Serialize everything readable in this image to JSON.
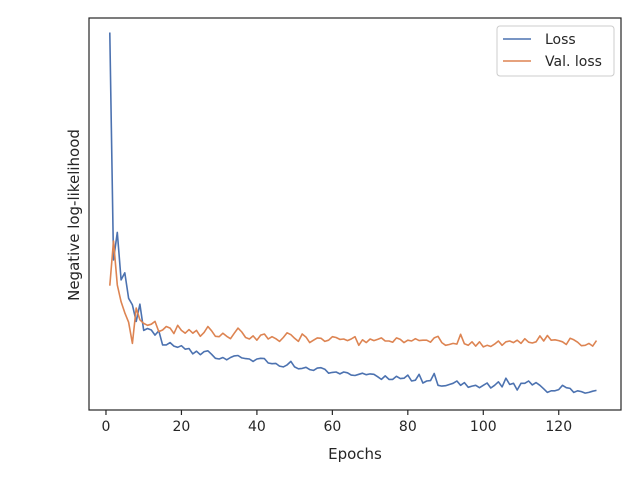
{
  "chart_data": {
    "type": "line",
    "title": "",
    "xlabel": "Epochs",
    "ylabel": "Negative log-likelihood",
    "xlim": [
      -4.5,
      136.5
    ],
    "ylim": [
      0,
      1
    ],
    "y_tick_labels_shown": false,
    "xticks": [
      0,
      20,
      40,
      60,
      80,
      100,
      120
    ],
    "legend_position": "top-right",
    "grid": false,
    "series": [
      {
        "name": "Loss",
        "color": "#4c72b0",
        "x": [
          1,
          2,
          3,
          4,
          5,
          6,
          7,
          8,
          9,
          10,
          11,
          12,
          13,
          14,
          15,
          16,
          17,
          18,
          19,
          20,
          21,
          22,
          23,
          24,
          25,
          26,
          27,
          28,
          29,
          30,
          31,
          32,
          33,
          34,
          35,
          36,
          37,
          38,
          39,
          40,
          41,
          42,
          43,
          44,
          45,
          46,
          47,
          48,
          49,
          50,
          51,
          52,
          53,
          54,
          55,
          56,
          57,
          58,
          59,
          60,
          61,
          62,
          63,
          64,
          65,
          66,
          67,
          68,
          69,
          70,
          71,
          72,
          73,
          74,
          75,
          76,
          77,
          78,
          79,
          80,
          81,
          82,
          83,
          84,
          85,
          86,
          87,
          88,
          89,
          90,
          91,
          92,
          93,
          94,
          95,
          96,
          97,
          98,
          99,
          100,
          101,
          102,
          103,
          104,
          105,
          106,
          107,
          108,
          109,
          110,
          111,
          112,
          113,
          114,
          115,
          116,
          117,
          118,
          119,
          120,
          121,
          122,
          123,
          124,
          125,
          126,
          127,
          128,
          129,
          130
        ],
        "y": [
          0.963,
          0.383,
          0.453,
          0.332,
          0.35,
          0.285,
          0.268,
          0.226,
          0.27,
          0.203,
          0.208,
          0.204,
          0.191,
          0.202,
          0.166,
          0.166,
          0.172,
          0.163,
          0.16,
          0.164,
          0.155,
          0.157,
          0.143,
          0.15,
          0.141,
          0.149,
          0.151,
          0.142,
          0.132,
          0.13,
          0.134,
          0.128,
          0.134,
          0.138,
          0.139,
          0.133,
          0.131,
          0.13,
          0.124,
          0.13,
          0.132,
          0.131,
          0.12,
          0.118,
          0.119,
          0.112,
          0.11,
          0.115,
          0.124,
          0.11,
          0.105,
          0.106,
          0.109,
          0.103,
          0.101,
          0.107,
          0.108,
          0.104,
          0.094,
          0.096,
          0.097,
          0.092,
          0.097,
          0.095,
          0.089,
          0.088,
          0.091,
          0.094,
          0.09,
          0.092,
          0.091,
          0.085,
          0.078,
          0.087,
          0.078,
          0.078,
          0.086,
          0.08,
          0.081,
          0.089,
          0.074,
          0.076,
          0.091,
          0.069,
          0.074,
          0.075,
          0.093,
          0.063,
          0.061,
          0.062,
          0.065,
          0.068,
          0.074,
          0.063,
          0.07,
          0.058,
          0.061,
          0.063,
          0.057,
          0.063,
          0.069,
          0.056,
          0.063,
          0.072,
          0.059,
          0.081,
          0.065,
          0.068,
          0.051,
          0.068,
          0.068,
          0.074,
          0.064,
          0.07,
          0.063,
          0.054,
          0.045,
          0.049,
          0.049,
          0.052,
          0.063,
          0.057,
          0.055,
          0.045,
          0.049,
          0.047,
          0.043,
          0.045,
          0.048,
          0.05
        ]
      },
      {
        "name": "Val. loss",
        "color": "#dd8452",
        "x": [
          1,
          2,
          3,
          4,
          5,
          6,
          7,
          8,
          9,
          10,
          11,
          12,
          13,
          14,
          15,
          16,
          17,
          18,
          19,
          20,
          21,
          22,
          23,
          24,
          25,
          26,
          27,
          28,
          29,
          30,
          31,
          32,
          33,
          34,
          35,
          36,
          37,
          38,
          39,
          40,
          41,
          42,
          43,
          44,
          45,
          46,
          47,
          48,
          49,
          50,
          51,
          52,
          53,
          54,
          55,
          56,
          57,
          58,
          59,
          60,
          61,
          62,
          63,
          64,
          65,
          66,
          67,
          68,
          69,
          70,
          71,
          72,
          73,
          74,
          75,
          76,
          77,
          78,
          79,
          80,
          81,
          82,
          83,
          84,
          85,
          86,
          87,
          88,
          89,
          90,
          91,
          92,
          93,
          94,
          95,
          96,
          97,
          98,
          99,
          100,
          101,
          102,
          103,
          104,
          105,
          106,
          107,
          108,
          109,
          110,
          111,
          112,
          113,
          114,
          115,
          116,
          117,
          118,
          119,
          120,
          121,
          122,
          123,
          124,
          125,
          126,
          127,
          128,
          129,
          130
        ],
        "y": [
          0.317,
          0.431,
          0.319,
          0.276,
          0.248,
          0.224,
          0.17,
          0.26,
          0.23,
          0.221,
          0.216,
          0.219,
          0.226,
          0.2,
          0.204,
          0.213,
          0.209,
          0.195,
          0.216,
          0.203,
          0.196,
          0.205,
          0.196,
          0.203,
          0.188,
          0.198,
          0.213,
          0.202,
          0.188,
          0.187,
          0.196,
          0.188,
          0.182,
          0.196,
          0.209,
          0.199,
          0.185,
          0.181,
          0.189,
          0.178,
          0.191,
          0.194,
          0.181,
          0.187,
          0.182,
          0.175,
          0.185,
          0.197,
          0.192,
          0.183,
          0.175,
          0.194,
          0.186,
          0.172,
          0.178,
          0.184,
          0.183,
          0.175,
          0.178,
          0.187,
          0.185,
          0.18,
          0.181,
          0.177,
          0.181,
          0.187,
          0.165,
          0.179,
          0.172,
          0.181,
          0.177,
          0.18,
          0.184,
          0.176,
          0.176,
          0.173,
          0.184,
          0.18,
          0.172,
          0.178,
          0.176,
          0.182,
          0.177,
          0.178,
          0.178,
          0.173,
          0.184,
          0.188,
          0.172,
          0.165,
          0.167,
          0.17,
          0.168,
          0.193,
          0.169,
          0.165,
          0.174,
          0.163,
          0.174,
          0.161,
          0.165,
          0.162,
          0.168,
          0.176,
          0.165,
          0.174,
          0.176,
          0.172,
          0.178,
          0.17,
          0.182,
          0.173,
          0.171,
          0.174,
          0.189,
          0.176,
          0.19,
          0.178,
          0.179,
          0.177,
          0.174,
          0.167,
          0.183,
          0.179,
          0.173,
          0.164,
          0.165,
          0.17,
          0.163,
          0.177
        ]
      }
    ]
  }
}
